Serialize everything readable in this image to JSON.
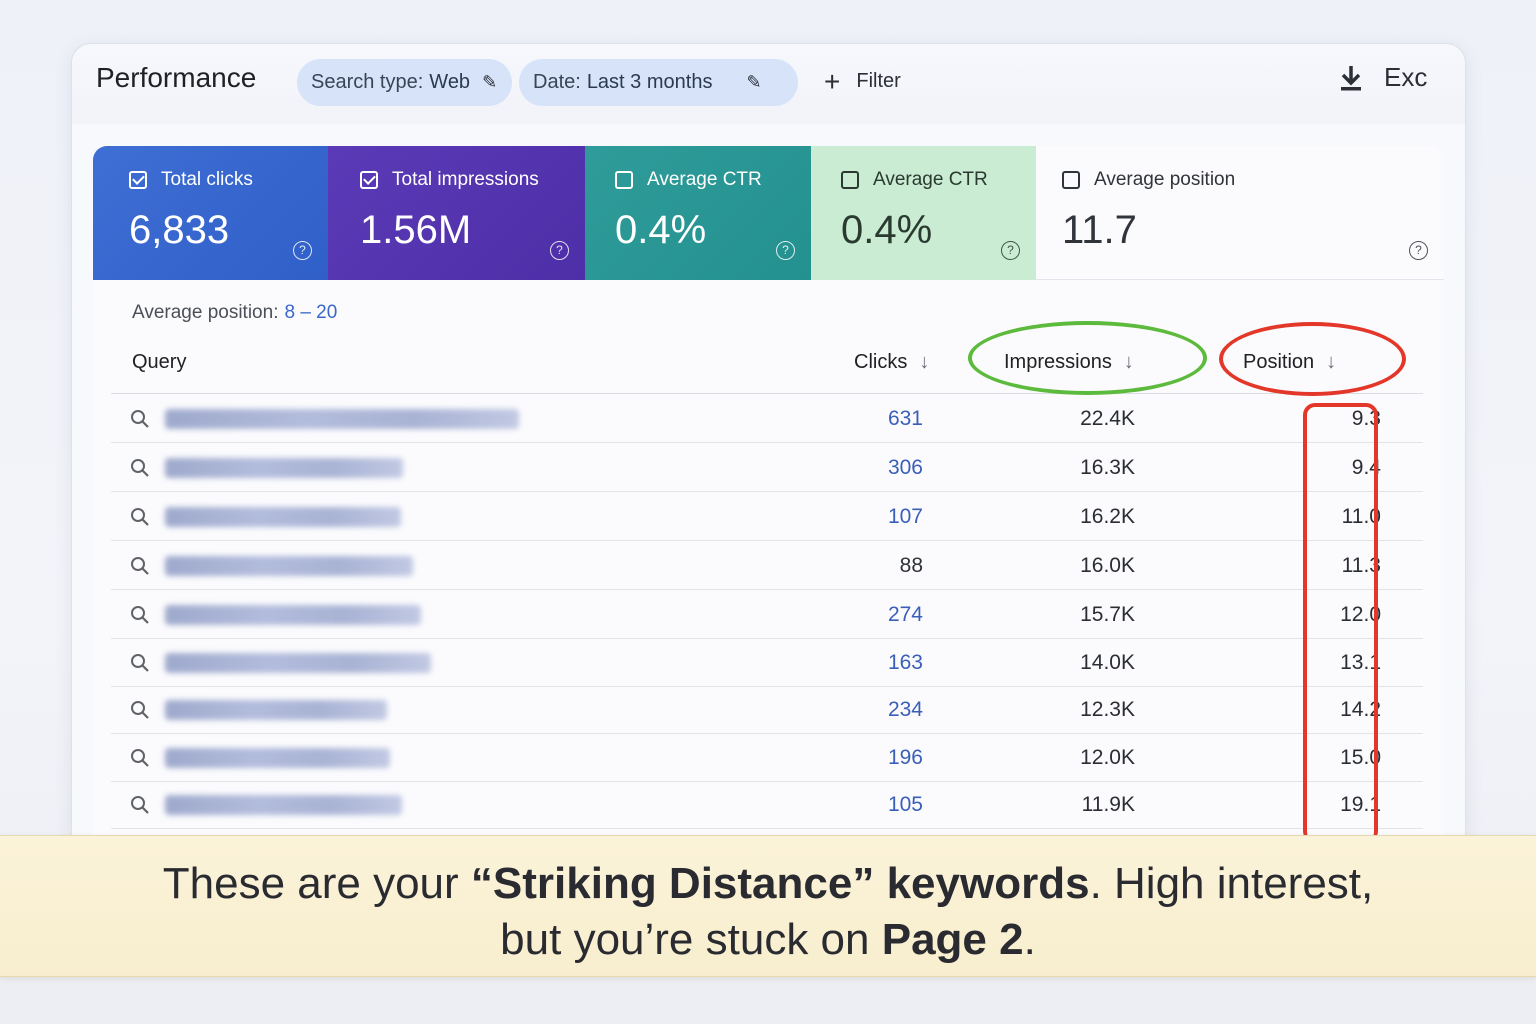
{
  "header": {
    "title": "Performance",
    "search_type_label": "Search type:",
    "search_type_value": "Web",
    "date_label": "Date:",
    "date_value": "Last 3 months",
    "filter_label": "Filter",
    "export_label": "Exc"
  },
  "cards": [
    {
      "label": "Total clicks",
      "value": "6,833",
      "checked": true
    },
    {
      "label": "Total impressions",
      "value": "1.56M",
      "checked": true
    },
    {
      "label": "Average CTR",
      "value": "0.4%",
      "checked": false
    },
    {
      "label": "Average CTR",
      "value": "0.4%",
      "checked": false
    },
    {
      "label": "Average position",
      "value": "11.7",
      "checked": false
    }
  ],
  "filter_summary": {
    "label": "Average position:",
    "value": "8 – 20"
  },
  "table": {
    "columns": {
      "query": "Query",
      "clicks": "Clicks",
      "impressions": "Impressions",
      "position": "Position"
    },
    "rows": [
      {
        "clicks": "631",
        "impressions": "22.4K",
        "position": "9.3"
      },
      {
        "clicks": "306",
        "impressions": "16.3K",
        "position": "9.4"
      },
      {
        "clicks": "107",
        "impressions": "16.2K",
        "position": "11.0"
      },
      {
        "clicks": "88",
        "impressions": "16.0K",
        "position": "11.3"
      },
      {
        "clicks": "274",
        "impressions": "15.7K",
        "position": "12.0"
      },
      {
        "clicks": "163",
        "impressions": "14.0K",
        "position": "13.1"
      },
      {
        "clicks": "234",
        "impressions": "12.3K",
        "position": "14.2"
      },
      {
        "clicks": "196",
        "impressions": "12.0K",
        "position": "15.0"
      },
      {
        "clicks": "105",
        "impressions": "11.9K",
        "position": "19.1"
      }
    ]
  },
  "banner": {
    "part1": "These are your ",
    "bold1": "“Striking Distance” keywords",
    "part2": ". High interest,",
    "part3": "but you’re stuck on ",
    "bold2": "Page 2",
    "part4": "."
  },
  "colors": {
    "clicks_card": "#3f6fd4",
    "impressions_card": "#5a3ab6",
    "ctr_card": "#2f9c9a",
    "ctr_card_light": "#c9ecd3",
    "highlight_green": "#5cba3c",
    "highlight_red": "#e3372a",
    "link_blue": "#3a5fb8"
  }
}
